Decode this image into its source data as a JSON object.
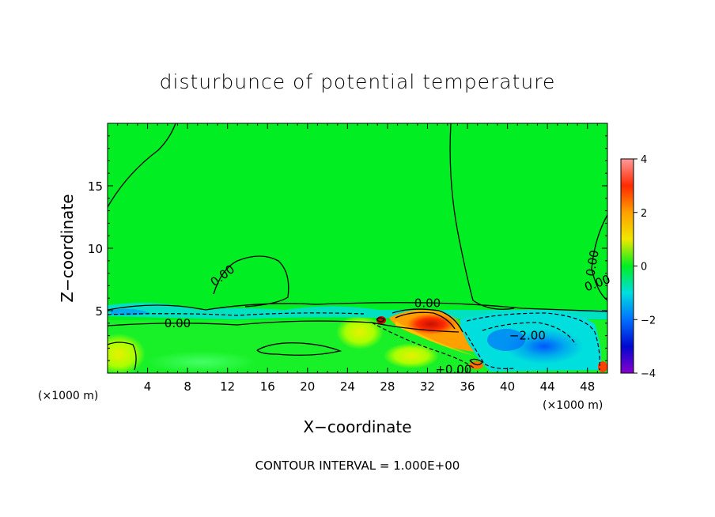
{
  "chart_data": {
    "type": "heatmap",
    "title": "disturbunce of potential temperature",
    "xlabel": "X−coordinate",
    "ylabel": "Z−coordinate",
    "x_unit_left": "(×1000 m)",
    "x_unit_right": "(×1000 m)",
    "xlim": [
      0,
      50
    ],
    "ylim": [
      0,
      20
    ],
    "x_ticks": [
      4,
      8,
      12,
      16,
      20,
      24,
      28,
      32,
      36,
      40,
      44,
      48
    ],
    "y_ticks": [
      5,
      10,
      15
    ],
    "note": "CONTOUR INTERVAL = 1.000E+00",
    "colorbar": {
      "min": -4,
      "max": 4,
      "ticks": [
        4,
        2,
        0,
        -2,
        -4
      ],
      "colors": [
        "#ff9a9a",
        "#ff2a00",
        "#ffa000",
        "#f0e800",
        "#00ee22",
        "#00dede",
        "#0070ff",
        "#0008d0",
        "#8800cc"
      ]
    },
    "contour_labels": [
      {
        "text": "0.00",
        "x": 11.5,
        "z": 7.8,
        "rotate": -38
      },
      {
        "text": "0.00",
        "x": 7.0,
        "z": 4.0,
        "rotate": 0
      },
      {
        "text": "0.00",
        "x": 32.0,
        "z": 5.6,
        "rotate": 0
      },
      {
        "text": "−2.00",
        "x": 42.0,
        "z": 3.0,
        "rotate": 0
      },
      {
        "text": "+0.00",
        "x": 34.6,
        "z": 0.3,
        "rotate": 0
      },
      {
        "text": "0.00",
        "x": 48.5,
        "z": 8.8,
        "rotate": -80
      },
      {
        "text": "0.00",
        "x": 49.0,
        "z": 7.2,
        "rotate": -20
      }
    ],
    "features": [
      {
        "name": "warm anomaly",
        "x_range": [
          29,
          36
        ],
        "z_range": [
          2.5,
          5.2
        ],
        "max_value": 3.5
      },
      {
        "name": "cold pool",
        "x_range": [
          37,
          49
        ],
        "z_range": [
          0,
          5
        ],
        "min_value": -3
      },
      {
        "name": "cold layer",
        "x_range": [
          0,
          50
        ],
        "z_range": [
          4.5,
          5.2
        ],
        "value": -1
      }
    ]
  }
}
